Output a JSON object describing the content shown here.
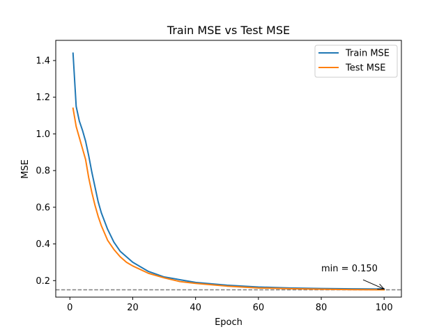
{
  "chart_data": {
    "type": "line",
    "title": "Train MSE vs Test MSE",
    "xlabel": "Epoch",
    "ylabel": "MSE",
    "xlim": [
      -4.5,
      105.5
    ],
    "ylim": [
      0.11,
      1.51
    ],
    "xticks": [
      0,
      20,
      40,
      60,
      80,
      100
    ],
    "yticks": [
      0.2,
      0.4,
      0.6,
      0.8,
      1.0,
      1.2,
      1.4
    ],
    "ytick_labels": [
      "0.2",
      "0.4",
      "0.6",
      "0.8",
      "1.0",
      "1.2",
      "1.4"
    ],
    "grid": false,
    "legend_position": "upper right",
    "series": [
      {
        "name": "Train MSE",
        "color": "#1f77b4",
        "x": [
          1,
          2,
          3,
          4,
          5,
          6,
          7,
          8,
          9,
          10,
          12,
          14,
          16,
          18,
          20,
          25,
          30,
          35,
          40,
          50,
          60,
          70,
          80,
          90,
          100
        ],
        "y": [
          1.44,
          1.15,
          1.07,
          1.02,
          0.96,
          0.88,
          0.79,
          0.71,
          0.63,
          0.57,
          0.48,
          0.41,
          0.36,
          0.33,
          0.3,
          0.25,
          0.22,
          0.205,
          0.19,
          0.175,
          0.165,
          0.16,
          0.157,
          0.155,
          0.154
        ]
      },
      {
        "name": "Test MSE",
        "color": "#ff7f0e",
        "x": [
          1,
          2,
          3,
          4,
          5,
          6,
          7,
          8,
          9,
          10,
          12,
          14,
          16,
          18,
          20,
          25,
          30,
          35,
          40,
          50,
          60,
          70,
          80,
          90,
          100
        ],
        "y": [
          1.14,
          1.04,
          0.98,
          0.92,
          0.86,
          0.76,
          0.68,
          0.61,
          0.55,
          0.5,
          0.42,
          0.37,
          0.33,
          0.3,
          0.28,
          0.24,
          0.215,
          0.195,
          0.185,
          0.17,
          0.16,
          0.156,
          0.153,
          0.151,
          0.15
        ]
      }
    ],
    "hline": {
      "y": 0.15,
      "color": "#7f7f7f",
      "style": "dashed"
    },
    "annotation": {
      "text": "min = 0.150",
      "point": [
        100,
        0.15
      ],
      "text_anchor": [
        80,
        0.25
      ]
    }
  }
}
